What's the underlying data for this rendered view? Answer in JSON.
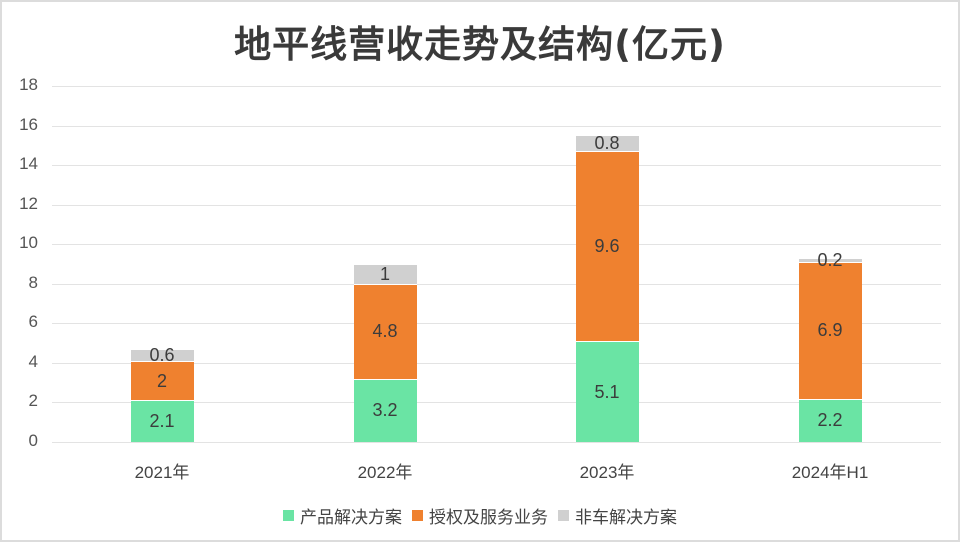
{
  "chart_data": {
    "type": "bar",
    "stacked": true,
    "title": "地平线营收走势及结构(亿元)",
    "xlabel": "",
    "ylabel": "",
    "ylim": [
      0,
      18
    ],
    "yticks": [
      0,
      2,
      4,
      6,
      8,
      10,
      12,
      14,
      16,
      18
    ],
    "grid": true,
    "legend_position": "bottom",
    "categories": [
      "2021年",
      "2022年",
      "2023年",
      "2024年H1"
    ],
    "series": [
      {
        "name": "产品解决方案",
        "color": "#6ae4a4",
        "values": [
          2.1,
          3.2,
          5.1,
          2.2
        ]
      },
      {
        "name": "授权及服务业务",
        "color": "#ef812f",
        "values": [
          2,
          4.8,
          9.6,
          6.9
        ]
      },
      {
        "name": "非车解决方案",
        "color": "#d0d0d0",
        "values": [
          0.6,
          1,
          0.8,
          0.2
        ]
      }
    ],
    "data_labels": [
      [
        "2.1",
        "3.2",
        "5.1",
        "2.2"
      ],
      [
        "2",
        "4.8",
        "9.6",
        "6.9"
      ],
      [
        "0.6",
        "1",
        "0.8",
        "0.2"
      ]
    ]
  }
}
